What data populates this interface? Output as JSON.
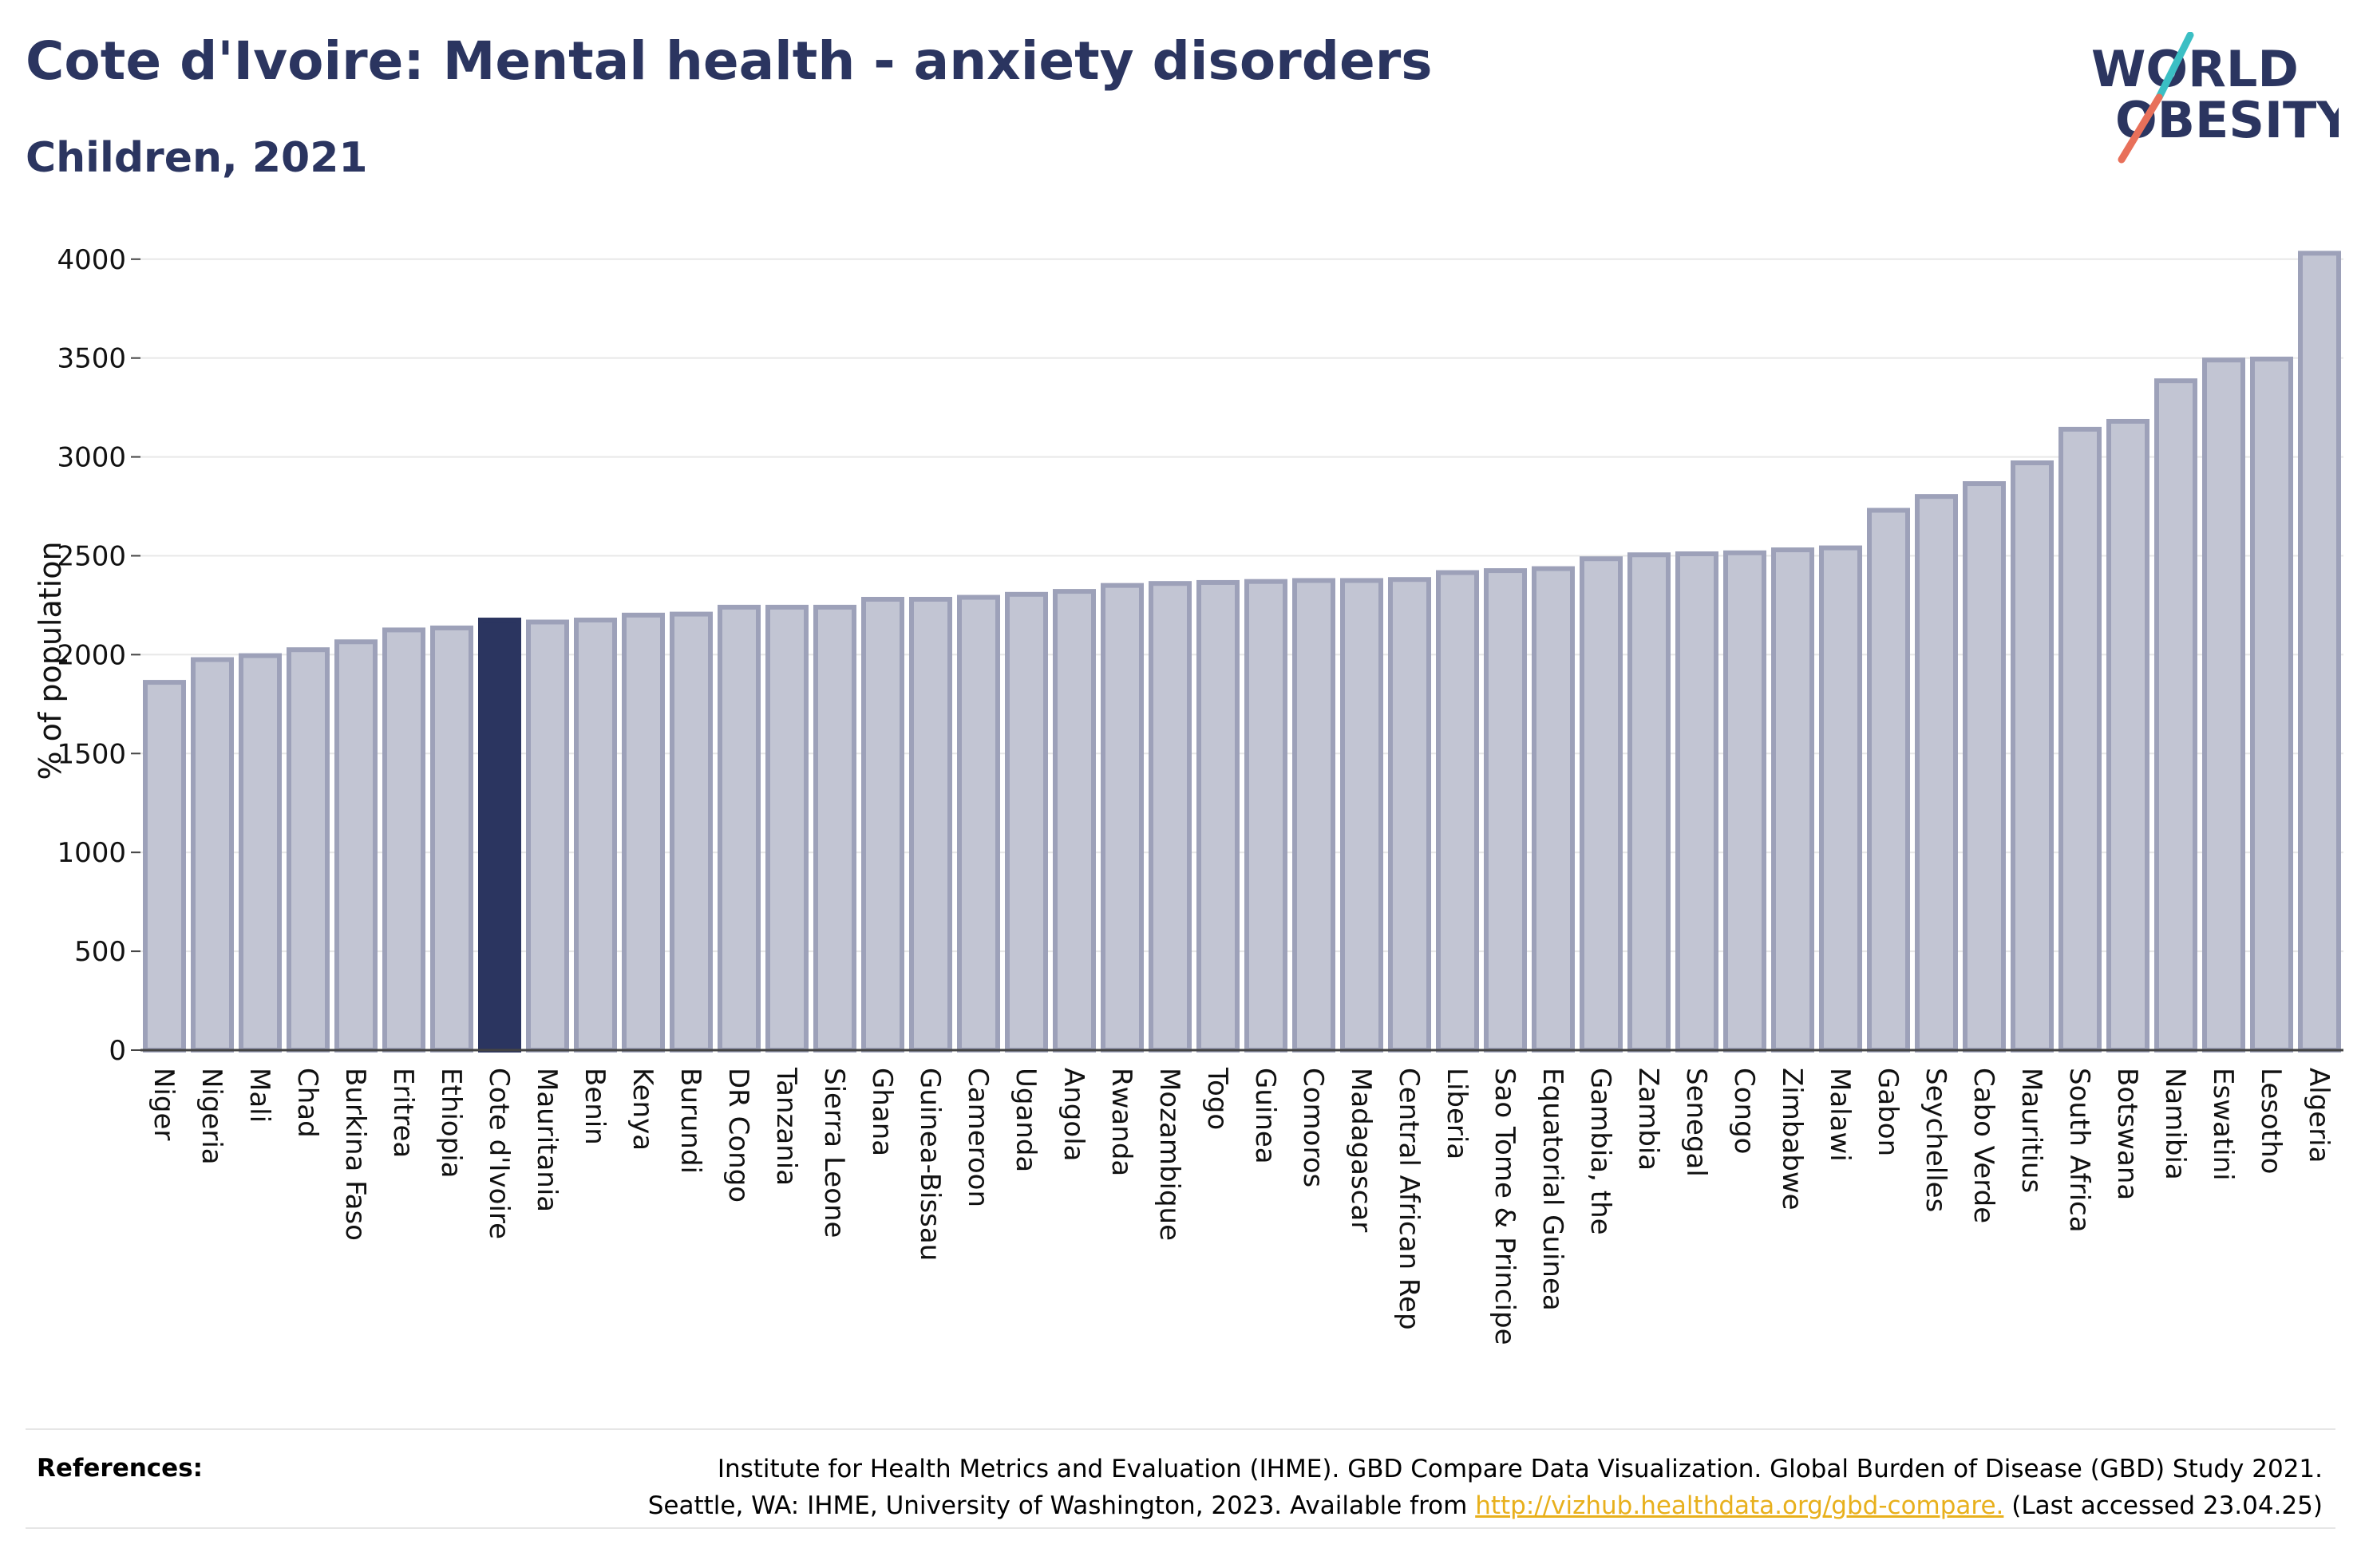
{
  "header": {
    "title": "Cote d'Ivoire: Mental health - anxiety disorders",
    "subtitle": "Children, 2021"
  },
  "logo": {
    "line1": "WORLD",
    "line2": "OBESITY",
    "colors": {
      "text": "#2b3560",
      "slash_teal": "#3bbfc4",
      "slash_coral": "#e8705a"
    }
  },
  "references": {
    "label": "References:",
    "line1": "Institute for Health Metrics and Evaluation (IHME). GBD Compare Data Visualization. Global Burden of Disease (GBD) Study 2021.",
    "line2_prefix": "Seattle, WA: IHME, University of Washington, 2023. Available from ",
    "link_text": "http://vizhub.healthdata.org/gbd-compare.",
    "line2_suffix": " (Last accessed 23.04.25)"
  },
  "chart_data": {
    "type": "bar",
    "ylabel": "% of population",
    "ylim": [
      0,
      4100
    ],
    "yticks": [
      0,
      500,
      1000,
      1500,
      2000,
      2500,
      3000,
      3500,
      4000
    ],
    "grid": true,
    "highlight": "Cote d'Ivoire",
    "colors": {
      "bar": "#c2c5d3",
      "bar_border": "#9da1b9",
      "highlight": "#2b3560",
      "grid": "#e8e8e8",
      "axis": "#444444"
    },
    "categories": [
      "Niger",
      "Nigeria",
      "Mali",
      "Chad",
      "Burkina Faso",
      "Eritrea",
      "Ethiopia",
      "Cote d'Ivoire",
      "Mauritania",
      "Benin",
      "Kenya",
      "Burundi",
      "DR Congo",
      "Tanzania",
      "Sierra Leone",
      "Ghana",
      "Guinea-Bissau",
      "Cameroon",
      "Uganda",
      "Angola",
      "Rwanda",
      "Mozambique",
      "Togo",
      "Guinea",
      "Comoros",
      "Madagascar",
      "Central African Rep",
      "Liberia",
      "Sao Tome & Principe",
      "Equatorial Guinea",
      "Gambia, the",
      "Zambia",
      "Senegal",
      "Congo",
      "Zimbabwe",
      "Malawi",
      "Gabon",
      "Seychelles",
      "Cabo Verde",
      "Mauritius",
      "South Africa",
      "Botswana",
      "Namibia",
      "Eswatini",
      "Lesotho",
      "Algeria"
    ],
    "values": [
      1860,
      1975,
      1995,
      2025,
      2065,
      2125,
      2135,
      2175,
      2165,
      2175,
      2200,
      2205,
      2240,
      2240,
      2240,
      2280,
      2280,
      2290,
      2305,
      2320,
      2350,
      2360,
      2365,
      2370,
      2375,
      2375,
      2380,
      2415,
      2425,
      2435,
      2485,
      2505,
      2510,
      2515,
      2530,
      2540,
      2730,
      2800,
      2865,
      2970,
      3140,
      3180,
      3385,
      3490,
      3495,
      4030
    ]
  }
}
